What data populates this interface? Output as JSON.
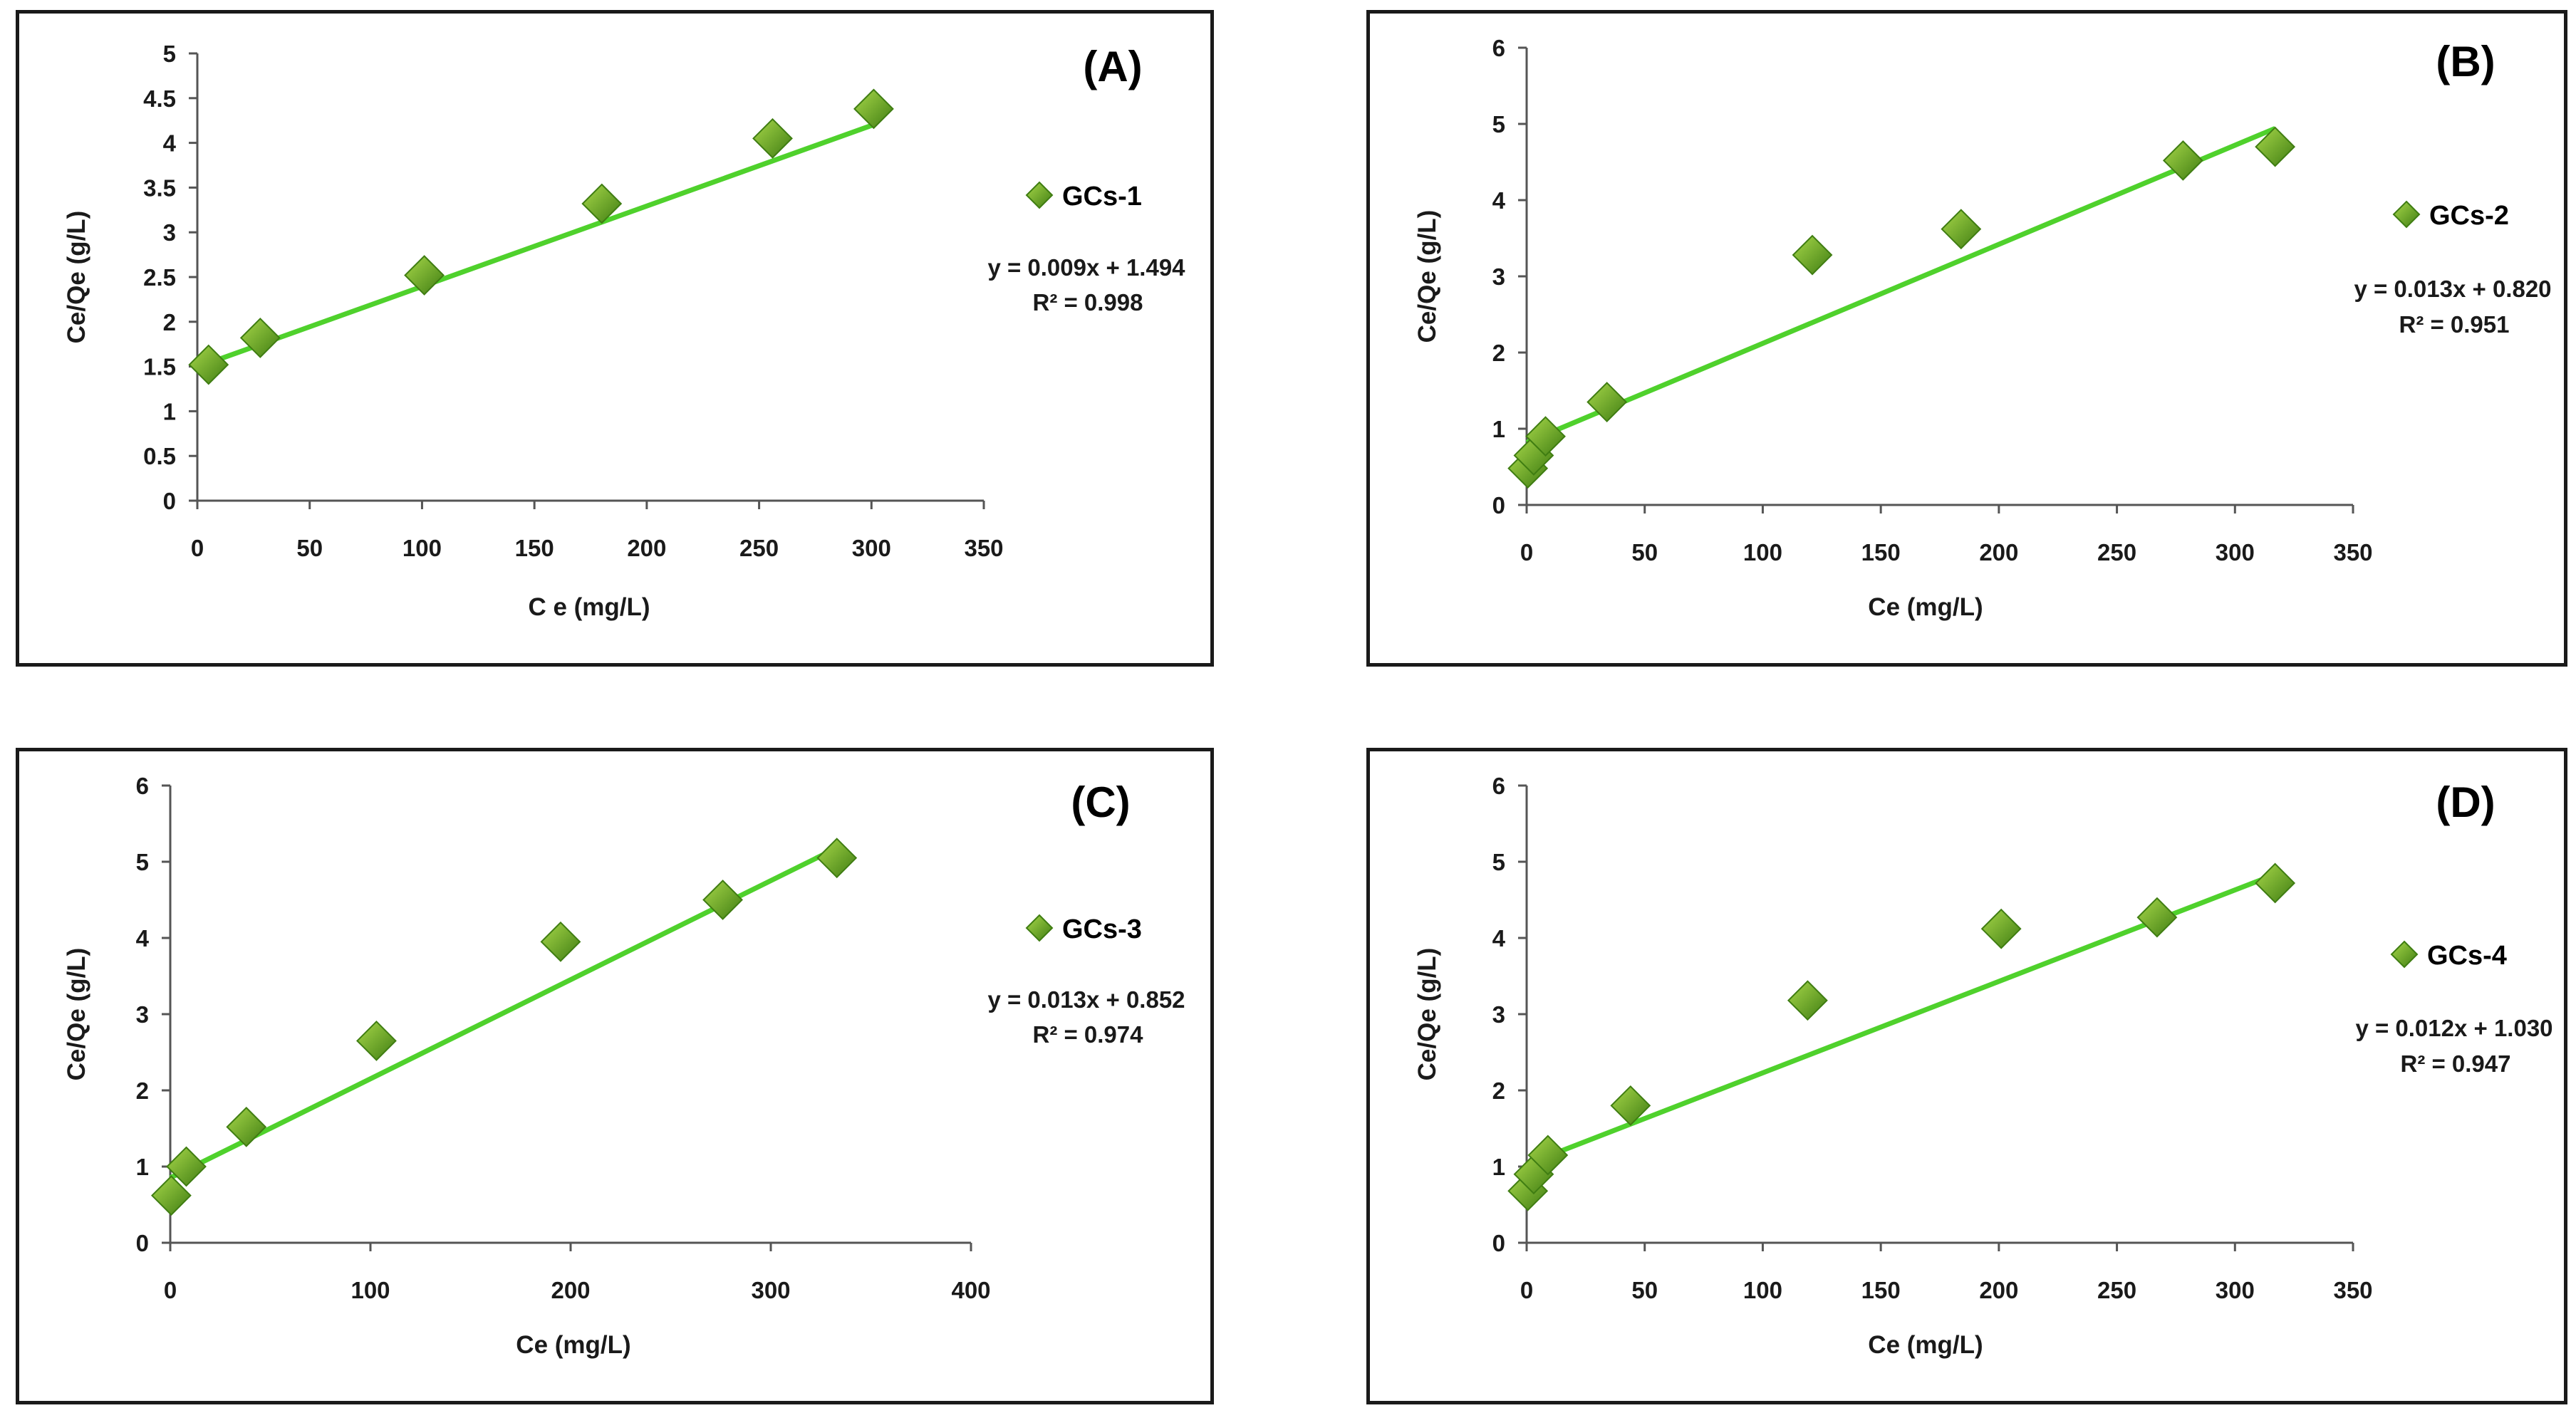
{
  "colors": {
    "trendline": "#4fd12c",
    "marker_light": "#a8d84a",
    "marker_dark": "#3f7d12",
    "axis": "#555555",
    "border": "#1a1a1a"
  },
  "chart_data": [
    {
      "type": "scatter",
      "panel_label": "(A)",
      "xlabel": "C e (mg/L)",
      "ylabel": "Ce/Qe  (g/L)",
      "xlim": [
        0,
        350
      ],
      "ylim": [
        0,
        5
      ],
      "x_ticks": [
        0,
        50,
        100,
        150,
        200,
        250,
        300,
        350
      ],
      "y_ticks": [
        0,
        0.5,
        1,
        1.5,
        2,
        2.5,
        3,
        3.5,
        4,
        4.5,
        5
      ],
      "y_tick_labels": [
        "0",
        "0.5",
        "1",
        "1.5",
        "2",
        "2.5",
        "3",
        "3.5",
        "4",
        "4.5",
        "5"
      ],
      "series": [
        {
          "name": "GCs-1",
          "x": [
            5,
            28,
            101,
            180,
            256,
            301
          ],
          "y": [
            1.52,
            1.82,
            2.52,
            3.32,
            4.05,
            4.38
          ]
        }
      ],
      "trendline": {
        "slope": 0.009,
        "intercept": 1.494,
        "x_range": [
          5,
          301
        ]
      },
      "equation": "y = 0.009x + 1.494",
      "r2": "R² = 0.998",
      "legend": "GCs-1"
    },
    {
      "type": "scatter",
      "panel_label": "(B)",
      "xlabel": "Ce (mg/L)",
      "ylabel": "Ce/Qe (g/L)",
      "xlim": [
        0,
        350
      ],
      "ylim": [
        0,
        6
      ],
      "x_ticks": [
        0,
        50,
        100,
        150,
        200,
        250,
        300,
        350
      ],
      "y_ticks": [
        0,
        1,
        2,
        3,
        4,
        5,
        6
      ],
      "y_tick_labels": [
        "0",
        "1",
        "2",
        "3",
        "4",
        "5",
        "6"
      ],
      "series": [
        {
          "name": "GCs-2",
          "x": [
            0.5,
            3,
            8,
            34,
            121,
            184,
            278,
            317
          ],
          "y": [
            0.48,
            0.65,
            0.9,
            1.35,
            3.28,
            3.62,
            4.52,
            4.7
          ]
        }
      ],
      "trendline": {
        "slope": 0.013,
        "intercept": 0.82,
        "x_range": [
          0,
          317
        ]
      },
      "equation": "y = 0.013x + 0.820",
      "r2": "R² = 0.951",
      "legend": "GCs-2"
    },
    {
      "type": "scatter",
      "panel_label": "(C)",
      "xlabel": "Ce (mg/L)",
      "ylabel": "Ce/Qe (g/L)",
      "xlim": [
        0,
        400
      ],
      "ylim": [
        0,
        6
      ],
      "x_ticks": [
        0,
        100,
        200,
        300,
        400
      ],
      "y_ticks": [
        0,
        1,
        2,
        3,
        4,
        5,
        6
      ],
      "y_tick_labels": [
        "0",
        "1",
        "2",
        "3",
        "4",
        "5",
        "6"
      ],
      "series": [
        {
          "name": "GCs-3",
          "x": [
            0.5,
            8,
            38,
            103,
            195,
            276,
            333
          ],
          "y": [
            0.62,
            1.0,
            1.52,
            2.65,
            3.95,
            4.5,
            5.05
          ]
        }
      ],
      "trendline": {
        "slope": 0.013,
        "intercept": 0.852,
        "x_range": [
          0,
          333
        ]
      },
      "equation": "y = 0.013x + 0.852",
      "r2": "R² = 0.974",
      "legend": "GCs-3"
    },
    {
      "type": "scatter",
      "panel_label": "(D)",
      "xlabel": "Ce (mg/L)",
      "ylabel": "Ce/Qe (g/L)",
      "xlim": [
        0,
        350
      ],
      "ylim": [
        0,
        6
      ],
      "x_ticks": [
        0,
        50,
        100,
        150,
        200,
        250,
        300,
        350
      ],
      "y_ticks": [
        0,
        1,
        2,
        3,
        4,
        5,
        6
      ],
      "y_tick_labels": [
        "0",
        "1",
        "2",
        "3",
        "4",
        "5",
        "6"
      ],
      "series": [
        {
          "name": "GCs-4",
          "x": [
            0.5,
            3,
            9,
            44,
            119,
            201,
            267,
            317
          ],
          "y": [
            0.68,
            0.9,
            1.15,
            1.8,
            3.18,
            4.12,
            4.27,
            4.72
          ]
        }
      ],
      "trendline": {
        "slope": 0.012,
        "intercept": 1.03,
        "x_range": [
          0,
          317
        ]
      },
      "equation": "y = 0.012x + 1.030",
      "r2": "R² = 0.947",
      "legend": "GCs-4"
    }
  ]
}
